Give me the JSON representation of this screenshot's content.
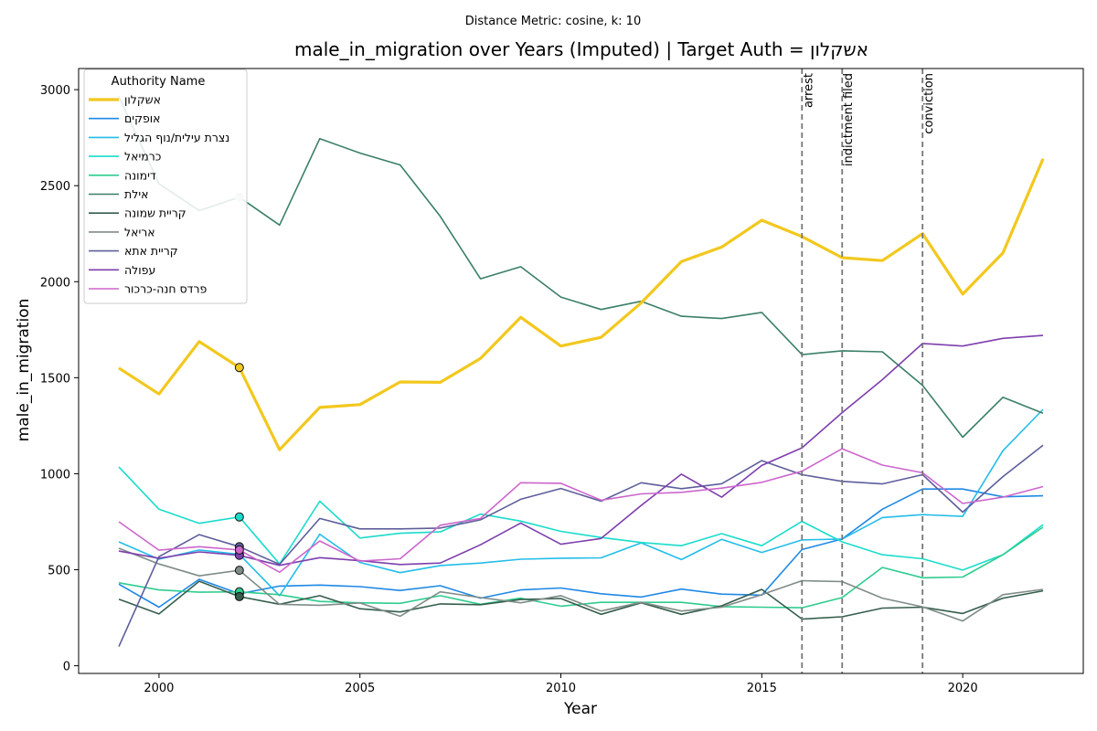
{
  "suptitle": "Distance Metric: cosine, k: 10",
  "chart_data": {
    "type": "line",
    "title": "male_in_migration over Years (Imputed) | Target Auth = אשקלון",
    "xlabel": "Year",
    "ylabel": "male_in_migration",
    "xlim": [
      1998,
      2023
    ],
    "ylim": [
      -40,
      3110
    ],
    "x_ticks": [
      2000,
      2005,
      2010,
      2015,
      2020
    ],
    "y_ticks": [
      0,
      500,
      1000,
      1500,
      2000,
      2500,
      3000
    ],
    "grid": false,
    "legend_title": "Authority Name",
    "legend_position": "upper-left",
    "x": [
      1999,
      2000,
      2001,
      2002,
      2003,
      2004,
      2005,
      2006,
      2007,
      2008,
      2009,
      2010,
      2011,
      2012,
      2013,
      2014,
      2015,
      2016,
      2017,
      2018,
      2019,
      2020,
      2021,
      2022
    ],
    "events": [
      {
        "x": 2016,
        "label": "arrest"
      },
      {
        "x": 2017,
        "label": "indictment filed"
      },
      {
        "x": 2019,
        "label": "conviction"
      }
    ],
    "imputed_year": 2002,
    "series": [
      {
        "name": "אשקלון",
        "color": "#f2c81e",
        "target": true,
        "values": [
          1550,
          1415,
          1688,
          1553,
          1125,
          1345,
          1360,
          1478,
          1476,
          1600,
          1815,
          1665,
          1710,
          1890,
          2105,
          2180,
          2320,
          2235,
          2125,
          2110,
          2250,
          1935,
          2150,
          2640
        ]
      },
      {
        "name": "אופקים",
        "color": "#1f88e5",
        "values": [
          425,
          305,
          450,
          375,
          415,
          420,
          412,
          392,
          417,
          352,
          395,
          405,
          375,
          358,
          399,
          373,
          368,
          605,
          660,
          815,
          920,
          920,
          880,
          885
        ]
      },
      {
        "name": "נצרת עילית/נוף הגליל",
        "color": "#23bde8",
        "values": [
          645,
          555,
          603,
          580,
          365,
          685,
          538,
          485,
          522,
          535,
          555,
          560,
          562,
          640,
          553,
          658,
          590,
          655,
          660,
          772,
          787,
          778,
          1120,
          1335
        ]
      },
      {
        "name": "כרמיאל",
        "color": "#1adccb",
        "values": [
          1035,
          815,
          742,
          775,
          530,
          857,
          665,
          690,
          697,
          790,
          753,
          700,
          668,
          642,
          625,
          688,
          625,
          752,
          645,
          578,
          557,
          498,
          578,
          735
        ]
      },
      {
        "name": "דימונה",
        "color": "#2ecc8f",
        "values": [
          432,
          395,
          383,
          385,
          370,
          335,
          328,
          325,
          365,
          320,
          352,
          310,
          330,
          330,
          330,
          308,
          305,
          302,
          355,
          512,
          458,
          462,
          578,
          722
        ]
      },
      {
        "name": "אילת",
        "color": "#3a7f67",
        "values": [
          2965,
          2510,
          2370,
          2440,
          2295,
          2745,
          2670,
          2608,
          2340,
          2015,
          2078,
          1920,
          1855,
          1898,
          1820,
          1808,
          1840,
          1620,
          1640,
          1635,
          1460,
          1190,
          1398,
          1315
        ]
      },
      {
        "name": "קריית שמונה",
        "color": "#355e4c",
        "values": [
          347,
          270,
          440,
          360,
          320,
          365,
          297,
          280,
          322,
          318,
          345,
          350,
          268,
          328,
          268,
          312,
          398,
          243,
          255,
          300,
          305,
          272,
          352,
          390
        ]
      },
      {
        "name": "אריאל",
        "color": "#7f8c88",
        "values": [
          612,
          530,
          468,
          497,
          320,
          315,
          327,
          258,
          385,
          355,
          328,
          365,
          285,
          330,
          285,
          305,
          370,
          443,
          438,
          352,
          307,
          233,
          370,
          398
        ]
      },
      {
        "name": "קריית אתא",
        "color": "#5e5e9c",
        "values": [
          100,
          568,
          683,
          620,
          528,
          767,
          713,
          713,
          717,
          760,
          867,
          923,
          857,
          953,
          922,
          948,
          1068,
          995,
          960,
          947,
          995,
          800,
          985,
          1148
        ]
      },
      {
        "name": "עפולה",
        "color": "#7d3fad",
        "values": [
          597,
          560,
          593,
          575,
          523,
          563,
          547,
          527,
          535,
          630,
          743,
          633,
          663,
          835,
          998,
          878,
          1043,
          1135,
          1318,
          1490,
          1678,
          1665,
          1705,
          1720
        ]
      },
      {
        "name": "פרדס חנה-כרכור",
        "color": "#cc66cc",
        "values": [
          750,
          602,
          620,
          603,
          487,
          650,
          545,
          557,
          732,
          767,
          953,
          950,
          862,
          895,
          903,
          925,
          955,
          1013,
          1130,
          1045,
          1005,
          845,
          878,
          933
        ]
      }
    ]
  }
}
